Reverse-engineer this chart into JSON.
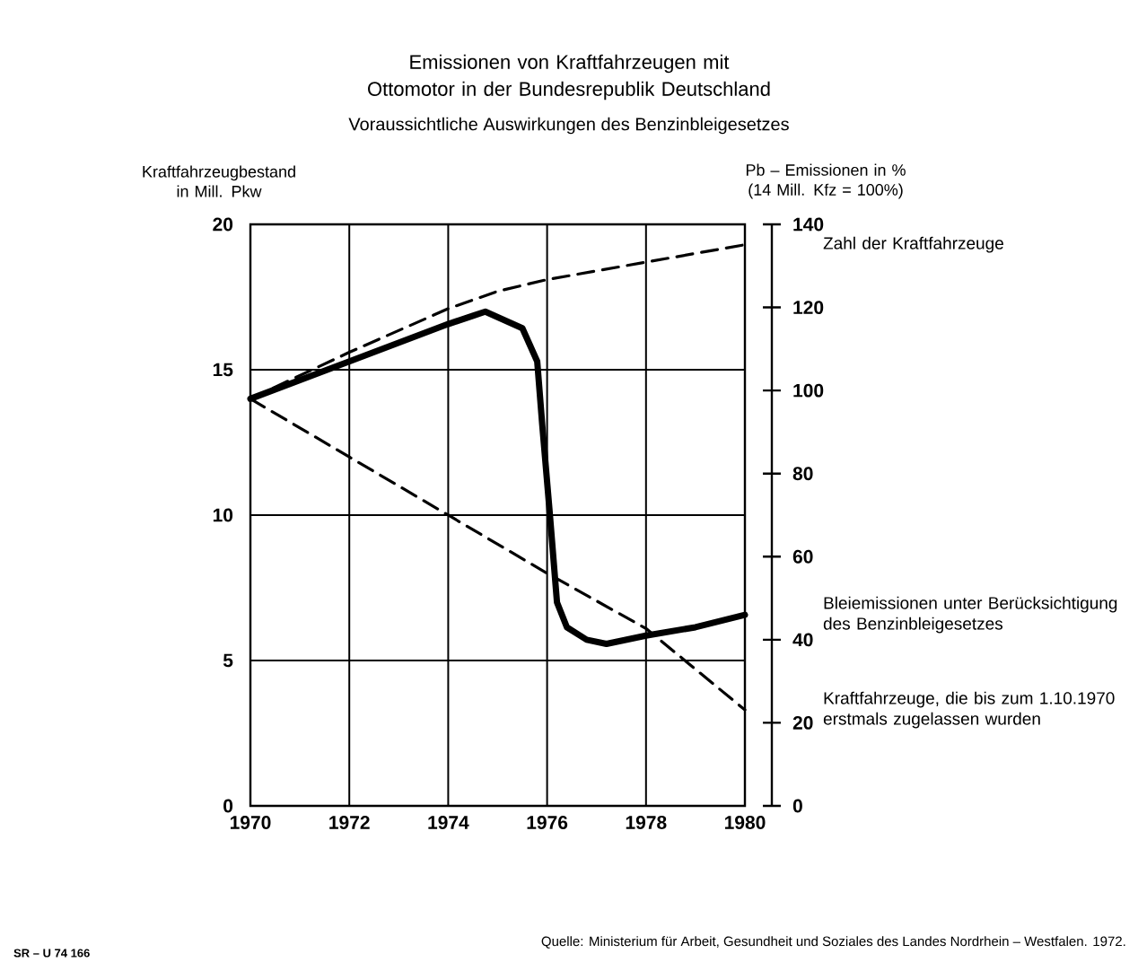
{
  "chart_data": {
    "type": "line",
    "title": "Emissionen von Kraftfahrzeugen mit Ottomotor in der Bundesrepublik Deutschland",
    "subtitle": "Voraussichtliche Auswirkungen des Benzinbleigesetzes",
    "ylabel": "Kraftfahrzeugbestand in Mill. Pkw",
    "y2label": "Pb – Emissionen in % (14 Mill. Kfz = 100%)",
    "xlim": [
      1970,
      1980
    ],
    "xticks": [
      1970,
      1972,
      1974,
      1976,
      1978,
      1980
    ],
    "ylim": [
      0,
      20
    ],
    "yticks": [
      0,
      5,
      10,
      15,
      20
    ],
    "y2lim": [
      0,
      140
    ],
    "y2ticks": [
      0,
      20,
      40,
      60,
      80,
      100,
      120,
      140
    ],
    "grid": true,
    "marker": "none",
    "series": [
      {
        "name": "Zahl der Kraftfahrzeuge",
        "color": "#000000",
        "line_style": "dashed",
        "x": [
          1970,
          1972,
          1974,
          1975,
          1976,
          1978,
          1980
        ],
        "values": [
          14.0,
          15.6,
          17.1,
          17.7,
          18.1,
          18.7,
          19.3
        ]
      },
      {
        "name": "Bleiemissionen unter Berücksichtigung des Benzinbleigesetzes",
        "color": "#000000",
        "line_style": "solid",
        "axis": "y2",
        "x": [
          1970,
          1972,
          1974,
          1974.5,
          1974.75,
          1975.5,
          1975.8,
          1975.9,
          1976.05,
          1976.2,
          1976.4,
          1976.8,
          1977.2,
          1978,
          1979,
          1980
        ],
        "values": [
          98,
          107,
          116,
          118,
          119,
          115,
          107,
          92,
          71,
          49,
          43,
          40,
          39,
          41,
          43,
          46
        ]
      },
      {
        "name": "Kraftfahrzeuge, die bis zum 1.10.1970 erstmals zugelassen wurden",
        "color": "#000000",
        "line_style": "dashed",
        "x": [
          1970,
          1972,
          1974,
          1976,
          1978,
          1980
        ],
        "values": [
          14.0,
          12.0,
          10.0,
          8.0,
          6.1,
          3.3
        ]
      }
    ],
    "annotations": [
      "Quelle: Ministerium für Arbeit, Gesundheit und Soziales des Landes Nordrhein – Westfalen. 1972.",
      "SR – U 74 166"
    ]
  }
}
